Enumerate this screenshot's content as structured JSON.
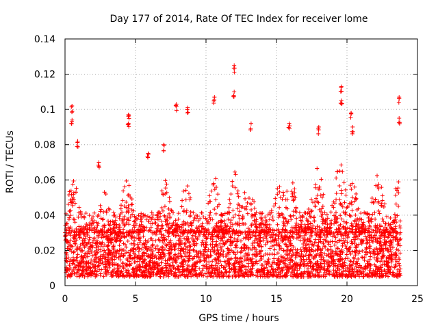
{
  "chart_data": {
    "type": "scatter",
    "title": "Day 177 of 2014, Rate Of TEC Index for receiver lome",
    "xlabel": "GPS time / hours",
    "ylabel": "ROTI / TECUs",
    "xlim": [
      0,
      25
    ],
    "ylim": [
      0,
      0.14
    ],
    "x_ticks": [
      0,
      5,
      10,
      15,
      20,
      25
    ],
    "x_tick_labels": [
      "0",
      "5",
      "10",
      "15",
      "20",
      "25"
    ],
    "y_ticks": [
      0,
      0.02,
      0.04,
      0.06,
      0.08,
      0.1,
      0.12,
      0.14
    ],
    "y_tick_labels": [
      "0",
      "0.02",
      "0.04",
      "0.06",
      "0.08",
      "0.1",
      "0.12",
      "0.14"
    ],
    "grid": true,
    "marker": "+",
    "series": [
      {
        "name": "ROTI",
        "color": "#ff0000",
        "x_range": [
          0,
          23.8
        ],
        "baseline_range": [
          0.005,
          0.03
        ],
        "typical_max": 0.06,
        "peaks": [
          {
            "x": 0.5,
            "y": 0.102
          },
          {
            "x": 0.5,
            "y": 0.094
          },
          {
            "x": 0.9,
            "y": 0.082
          },
          {
            "x": 2.4,
            "y": 0.07
          },
          {
            "x": 4.5,
            "y": 0.097
          },
          {
            "x": 4.5,
            "y": 0.092
          },
          {
            "x": 5.9,
            "y": 0.075
          },
          {
            "x": 7.0,
            "y": 0.08
          },
          {
            "x": 7.9,
            "y": 0.103
          },
          {
            "x": 8.7,
            "y": 0.101
          },
          {
            "x": 10.6,
            "y": 0.107
          },
          {
            "x": 12.0,
            "y": 0.125
          },
          {
            "x": 12.0,
            "y": 0.11
          },
          {
            "x": 13.2,
            "y": 0.092
          },
          {
            "x": 15.9,
            "y": 0.092
          },
          {
            "x": 18.0,
            "y": 0.09
          },
          {
            "x": 19.6,
            "y": 0.113
          },
          {
            "x": 19.6,
            "y": 0.105
          },
          {
            "x": 20.3,
            "y": 0.098
          },
          {
            "x": 20.4,
            "y": 0.09
          },
          {
            "x": 23.7,
            "y": 0.107
          },
          {
            "x": 23.7,
            "y": 0.095
          }
        ]
      }
    ]
  }
}
